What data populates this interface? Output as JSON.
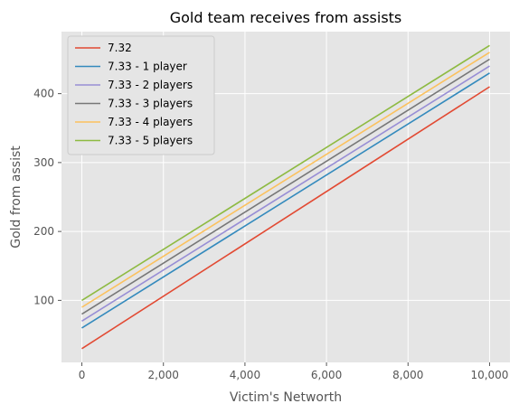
{
  "chart_data": {
    "type": "line",
    "title": "Gold team receives from assists",
    "xlabel": "Victim's Networth",
    "ylabel": "Gold from assist",
    "x": [
      0,
      10000
    ],
    "xlim": [
      -500,
      10500
    ],
    "ylim": [
      10,
      490
    ],
    "x_ticks": [
      0,
      2000,
      4000,
      6000,
      8000,
      10000
    ],
    "x_tick_labels": [
      "0",
      "2,000",
      "4,000",
      "6,000",
      "8,000",
      "10,000"
    ],
    "y_ticks": [
      100,
      200,
      300,
      400
    ],
    "y_tick_labels": [
      "100",
      "200",
      "300",
      "400"
    ],
    "grid": true,
    "legend_position": "upper-left",
    "series": [
      {
        "name": "7.32",
        "values": [
          30,
          410
        ],
        "color": "#E24A33"
      },
      {
        "name": "7.33 - 1 player",
        "values": [
          60,
          430
        ],
        "color": "#348ABD"
      },
      {
        "name": "7.33 - 2 players",
        "values": [
          70,
          440
        ],
        "color": "#988ED5"
      },
      {
        "name": "7.33 - 3 players",
        "values": [
          80,
          450
        ],
        "color": "#777777"
      },
      {
        "name": "7.33 - 4 players",
        "values": [
          90,
          460
        ],
        "color": "#FBC15E"
      },
      {
        "name": "7.33 - 5 players",
        "values": [
          100,
          470
        ],
        "color": "#8EBA42"
      }
    ],
    "colors": {
      "background": "#E5E5E5",
      "grid": "#FFFFFF",
      "text": "#555555"
    }
  }
}
